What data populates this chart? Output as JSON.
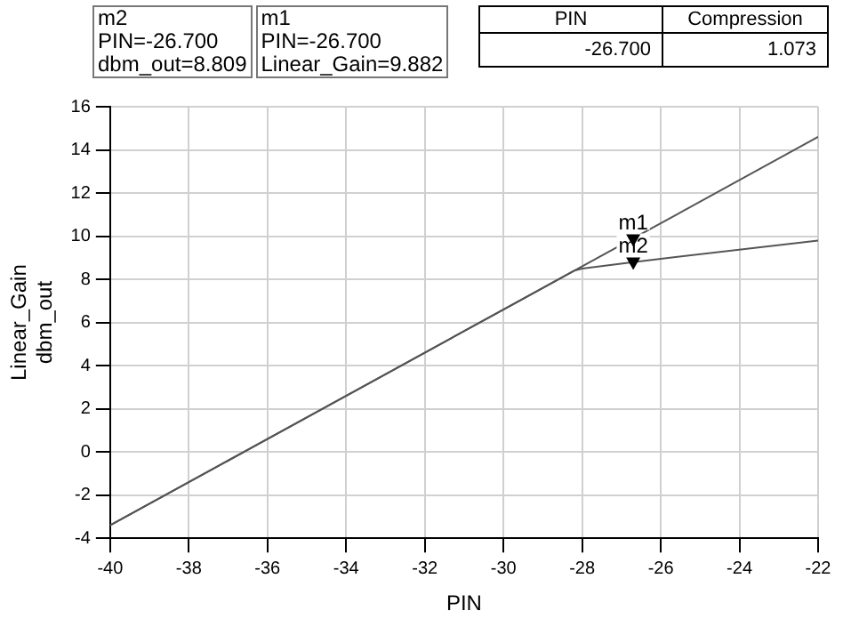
{
  "chart_data": {
    "type": "line",
    "xlabel": "PIN",
    "ylabel": "Linear_Gain\ndbm_out",
    "xlim": [
      -40,
      -22
    ],
    "xticks": [
      -40,
      -38,
      -36,
      -34,
      -32,
      -30,
      -28,
      -26,
      -24,
      -22
    ],
    "ylim": [
      -4,
      16
    ],
    "yticks": [
      -4,
      -2,
      0,
      2,
      4,
      6,
      8,
      10,
      12,
      14,
      16
    ],
    "grid": true,
    "legend": false,
    "marker": "none",
    "line_style": "solid",
    "series": [
      {
        "color": "#555555",
        "x": [
          -40,
          -22
        ],
        "values": [
          -3.4,
          14.6
        ]
      },
      {
        "color": "#555555",
        "x": [
          -40,
          -30,
          -28.2,
          -28,
          -26.7,
          -22
        ],
        "values": [
          -3.4,
          6.6,
          8.4,
          8.5,
          8.8,
          9.8
        ]
      }
    ],
    "annotations": [
      "m2\nPIN=-26.700\ndbm_out=8.809",
      "m1\nPIN=-26.700\nLinear_Gain=9.882",
      "PIN",
      "Compression",
      "-26.700",
      "1.073",
      {
        "text": "m1",
        "x": -26.7,
        "y": 9.882
      },
      {
        "text": "m2",
        "x": -26.7,
        "y": 8.809
      }
    ]
  }
}
